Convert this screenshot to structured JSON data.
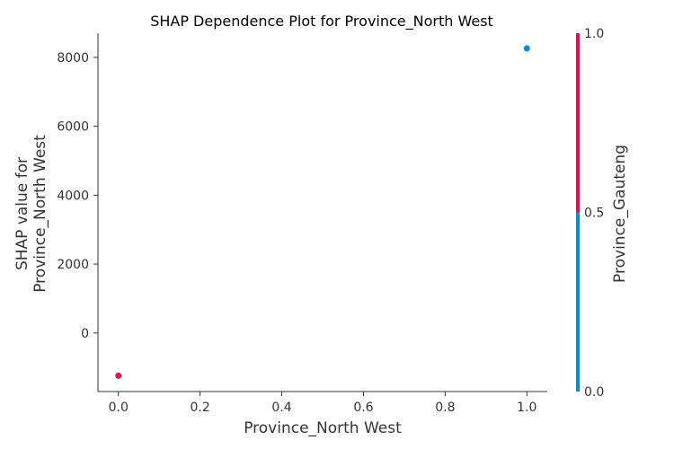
{
  "chart_data": {
    "type": "scatter",
    "title": "SHAP Dependence Plot for Province_North West",
    "xlabel": "Province_North West",
    "ylabel_lines": [
      "SHAP value for",
      "Province_North West"
    ],
    "xlim": [
      -0.05,
      1.05
    ],
    "ylim": [
      -1700,
      8700
    ],
    "xticks": [
      0.0,
      0.2,
      0.4,
      0.6,
      0.8,
      1.0
    ],
    "xtick_labels": [
      "0.0",
      "0.2",
      "0.4",
      "0.6",
      "0.8",
      "1.0"
    ],
    "yticks": [
      0,
      2000,
      4000,
      6000,
      8000
    ],
    "ytick_labels": [
      "0",
      "2000",
      "4000",
      "6000",
      "8000"
    ],
    "grid": false,
    "series": [
      {
        "points": [
          {
            "x": 0.0,
            "y": -1240,
            "color_value": 1.0
          },
          {
            "x": 1.0,
            "y": 8260,
            "color_value": 0.0
          }
        ]
      }
    ],
    "colorbar": {
      "label": "Province_Gauteng",
      "ticks": [
        0.0,
        0.5,
        1.0
      ],
      "tick_labels": [
        "0.0",
        "0.5",
        "1.0"
      ],
      "low_color": "#008BE5",
      "high_color": "#FF0051"
    }
  }
}
